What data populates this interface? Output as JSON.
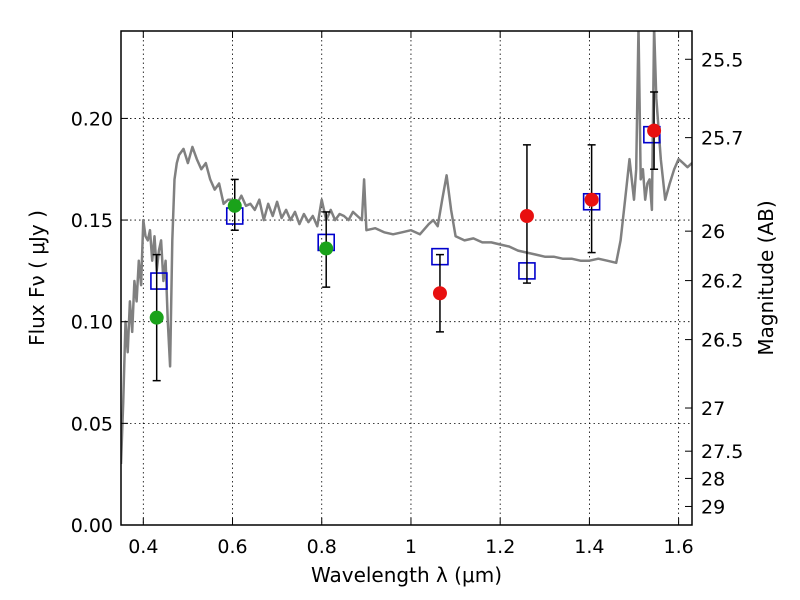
{
  "chart_data": {
    "type": "scatter",
    "xlabel": "Wavelength  λ (μm)",
    "ylabel_left": "Flux  Fν  ( μJy )",
    "ylabel_right": "Magnitude (AB)",
    "xlim": [
      0.35,
      1.63
    ],
    "ylim": [
      0.0,
      0.243
    ],
    "grid": true,
    "x_ticks": [
      {
        "value": 0.4,
        "label": "0.4"
      },
      {
        "value": 0.6,
        "label": "0.6"
      },
      {
        "value": 0.8,
        "label": "0.8"
      },
      {
        "value": 1.0,
        "label": "1"
      },
      {
        "value": 1.2,
        "label": "1.2"
      },
      {
        "value": 1.4,
        "label": "1.4"
      },
      {
        "value": 1.6,
        "label": "1.6"
      }
    ],
    "y_ticks": [
      {
        "value": 0.0,
        "label": "0.00"
      },
      {
        "value": 0.05,
        "label": "0.05"
      },
      {
        "value": 0.1,
        "label": "0.10"
      },
      {
        "value": 0.15,
        "label": "0.15"
      },
      {
        "value": 0.2,
        "label": "0.20"
      }
    ],
    "right_ticks": [
      {
        "value": 25.5,
        "label": "25.5"
      },
      {
        "value": 25.7,
        "label": "25.7"
      },
      {
        "value": 26.0,
        "label": "26"
      },
      {
        "value": 26.2,
        "label": "26.2"
      },
      {
        "value": 26.5,
        "label": "26.5"
      },
      {
        "value": 27.0,
        "label": "27"
      },
      {
        "value": 27.5,
        "label": "27.5"
      },
      {
        "value": 28.0,
        "label": "28"
      },
      {
        "value": 29.0,
        "label": "29"
      }
    ],
    "colors": {
      "model": "#808080",
      "model_points": "#0000cc",
      "observed_optical": "#1aa21a",
      "observed_nir": "#e81010",
      "errorbar": "#000000"
    },
    "series": [
      {
        "type": "line",
        "color": "#808080",
        "x": [
          0.35,
          0.355,
          0.36,
          0.365,
          0.37,
          0.375,
          0.38,
          0.385,
          0.39,
          0.395,
          0.4,
          0.405,
          0.41,
          0.415,
          0.42,
          0.425,
          0.43,
          0.435,
          0.44,
          0.445,
          0.45,
          0.455,
          0.46,
          0.465,
          0.47,
          0.475,
          0.48,
          0.49,
          0.5,
          0.51,
          0.52,
          0.53,
          0.54,
          0.55,
          0.56,
          0.57,
          0.58,
          0.59,
          0.6,
          0.61,
          0.62,
          0.63,
          0.64,
          0.65,
          0.66,
          0.67,
          0.68,
          0.69,
          0.7,
          0.71,
          0.72,
          0.73,
          0.74,
          0.75,
          0.76,
          0.77,
          0.78,
          0.79,
          0.8,
          0.81,
          0.82,
          0.83,
          0.84,
          0.85,
          0.86,
          0.87,
          0.88,
          0.89,
          0.895,
          0.9,
          0.92,
          0.94,
          0.96,
          0.98,
          1.0,
          1.02,
          1.04,
          1.05,
          1.06,
          1.07,
          1.08,
          1.09,
          1.1,
          1.12,
          1.14,
          1.16,
          1.18,
          1.2,
          1.22,
          1.24,
          1.26,
          1.28,
          1.3,
          1.32,
          1.34,
          1.36,
          1.38,
          1.4,
          1.42,
          1.44,
          1.46,
          1.47,
          1.48,
          1.49,
          1.5,
          1.505,
          1.51,
          1.515,
          1.52,
          1.525,
          1.53,
          1.535,
          1.54,
          1.545,
          1.55,
          1.56,
          1.57,
          1.58,
          1.59,
          1.6,
          1.61,
          1.62,
          1.63
        ],
        "y": [
          0.03,
          0.06,
          0.1,
          0.085,
          0.11,
          0.095,
          0.12,
          0.11,
          0.13,
          0.118,
          0.15,
          0.142,
          0.14,
          0.145,
          0.13,
          0.142,
          0.125,
          0.135,
          0.14,
          0.12,
          0.13,
          0.1,
          0.078,
          0.14,
          0.17,
          0.178,
          0.182,
          0.185,
          0.178,
          0.186,
          0.18,
          0.175,
          0.178,
          0.17,
          0.165,
          0.168,
          0.158,
          0.16,
          0.16,
          0.158,
          0.162,
          0.157,
          0.158,
          0.155,
          0.16,
          0.15,
          0.158,
          0.152,
          0.159,
          0.151,
          0.155,
          0.15,
          0.154,
          0.148,
          0.153,
          0.149,
          0.152,
          0.147,
          0.16,
          0.15,
          0.155,
          0.15,
          0.153,
          0.152,
          0.15,
          0.154,
          0.152,
          0.15,
          0.17,
          0.145,
          0.146,
          0.144,
          0.143,
          0.144,
          0.145,
          0.143,
          0.148,
          0.15,
          0.147,
          0.16,
          0.172,
          0.155,
          0.142,
          0.14,
          0.141,
          0.139,
          0.139,
          0.138,
          0.137,
          0.135,
          0.134,
          0.133,
          0.132,
          0.132,
          0.131,
          0.131,
          0.13,
          0.13,
          0.131,
          0.13,
          0.129,
          0.14,
          0.16,
          0.18,
          0.16,
          0.175,
          0.245,
          0.17,
          0.175,
          0.16,
          0.168,
          0.17,
          0.155,
          0.245,
          0.21,
          0.18,
          0.16,
          0.168,
          0.175,
          0.18,
          0.178,
          0.176,
          0.178
        ]
      },
      {
        "type": "scatter",
        "color": "#0000cc",
        "marker": "open-square",
        "x": [
          0.435,
          0.605,
          0.81,
          1.065,
          1.26,
          1.405,
          1.54
        ],
        "y": [
          0.12,
          0.152,
          0.139,
          0.132,
          0.125,
          0.159,
          0.192
        ]
      },
      {
        "type": "scatter",
        "color": "#1aa21a",
        "marker": "filled-circle",
        "x": [
          0.43,
          0.605,
          0.81
        ],
        "y": [
          0.102,
          0.157,
          0.136
        ],
        "y_low": [
          0.071,
          0.145,
          0.117
        ],
        "y_high": [
          0.133,
          0.17,
          0.154
        ]
      },
      {
        "type": "scatter",
        "color": "#e81010",
        "marker": "filled-circle",
        "x": [
          1.065,
          1.26,
          1.405,
          1.545
        ],
        "y": [
          0.114,
          0.152,
          0.16,
          0.194
        ],
        "y_low": [
          0.095,
          0.119,
          0.134,
          0.175
        ],
        "y_high": [
          0.133,
          0.187,
          0.187,
          0.213
        ]
      }
    ]
  }
}
